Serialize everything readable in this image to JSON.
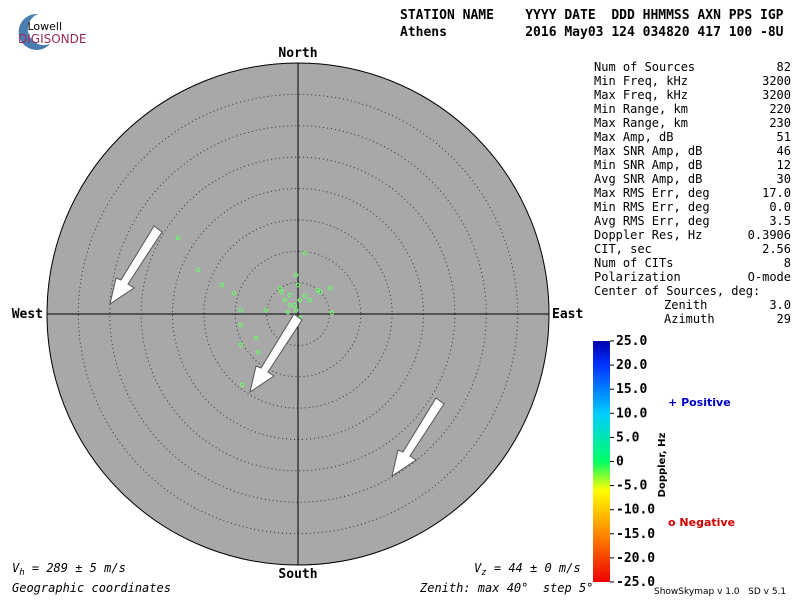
{
  "logo": {
    "top": "Lowell",
    "bottom": "DIGISONDE"
  },
  "header": {
    "line1": "STATION NAME    YYYY DATE  DDD HHMMSS AXN PPS IGP",
    "line2": "Athens          2016 May03 124 034820 417 100 -8U"
  },
  "stats": {
    "rows": [
      [
        "Num of Sources",
        "82"
      ],
      [
        "Min Freq, kHz",
        "3200"
      ],
      [
        "Max Freq, kHz",
        "3200"
      ],
      [
        "Min Range, km",
        "220"
      ],
      [
        "Max Range, km",
        "230"
      ],
      [
        "Max Amp, dB",
        "51"
      ],
      [
        "Max SNR Amp, dB",
        "46"
      ],
      [
        "Min SNR Amp, dB",
        "12"
      ],
      [
        "Avg SNR Amp, dB",
        "30"
      ],
      [
        "Max RMS Err, deg",
        "17.0"
      ],
      [
        "Min RMS Err, deg",
        "0.0"
      ],
      [
        "Avg RMS Err, deg",
        "3.5"
      ],
      [
        "Doppler Res, Hz",
        "0.3906"
      ],
      [
        "CIT, sec",
        "2.56"
      ],
      [
        "Num of CITs",
        "8"
      ],
      [
        "Polarization",
        "O-mode"
      ],
      [
        "Center of Sources, deg:",
        ""
      ]
    ],
    "center": [
      [
        "Zenith",
        "3.0"
      ],
      [
        "Azimuth",
        "29"
      ]
    ]
  },
  "compass": {
    "north": "North",
    "south": "South",
    "east": "East",
    "west": "West"
  },
  "skymap": {
    "zenith_max": 40,
    "zenith_step": 5,
    "background": "#a8a8a8",
    "points": [
      {
        "x": -19.1,
        "y": 12.1
      },
      {
        "x": -15.9,
        "y": 7.0
      },
      {
        "x": -12.1,
        "y": 4.6
      },
      {
        "x": -10.2,
        "y": 3.3
      },
      {
        "x": -9.1,
        "y": 0.6
      },
      {
        "x": -9.1,
        "y": -1.8
      },
      {
        "x": -6.7,
        "y": -3.8
      },
      {
        "x": -9.1,
        "y": -4.9
      },
      {
        "x": -6.4,
        "y": -6.1
      },
      {
        "x": -8.9,
        "y": -11.3
      },
      {
        "x": -5.1,
        "y": 0.6
      },
      {
        "x": 1.1,
        "y": 9.7
      },
      {
        "x": -0.3,
        "y": 6.2
      },
      {
        "x": 0,
        "y": 4.6
      },
      {
        "x": 3.2,
        "y": 3.8
      },
      {
        "x": 5.1,
        "y": 4.1
      },
      {
        "x": 5.4,
        "y": 0.2
      },
      {
        "x": -1.3,
        "y": 3.0
      },
      {
        "x": -2.1,
        "y": 2.2
      },
      {
        "x": 0.3,
        "y": 2.2
      },
      {
        "x": -0.5,
        "y": 1.4
      },
      {
        "x": -1.3,
        "y": 1.4
      },
      {
        "x": 1.1,
        "y": 2.9
      },
      {
        "x": 1.9,
        "y": 2.2
      },
      {
        "x": -2.6,
        "y": 3.5
      },
      {
        "x": -0.3,
        "y": 0.6
      },
      {
        "x": -1.6,
        "y": 0.3
      },
      {
        "x": 0.3,
        "y": -0.6
      },
      {
        "x": 3.5,
        "y": 3.5
      },
      {
        "x": -2.9,
        "y": 4.1
      }
    ],
    "point_color": "#66ff66"
  },
  "colorbar": {
    "label": "Doppler, Hz",
    "ylim": [
      -25,
      25
    ],
    "ticks": [
      {
        "value": 25,
        "label": "25.0"
      },
      {
        "value": 20,
        "label": "20.0"
      },
      {
        "value": 15,
        "label": "15.0"
      },
      {
        "value": 10,
        "label": "10.0"
      },
      {
        "value": 5,
        "label": "5.0"
      },
      0,
      {
        "value": -5,
        "label": "-5.0"
      },
      {
        "value": -10,
        "label": "-10.0"
      },
      {
        "value": -15,
        "label": "-15.0"
      },
      {
        "value": -20,
        "label": "-20.0"
      },
      {
        "value": -25,
        "label": "-25.0"
      }
    ]
  },
  "legend": {
    "positive_symbol": "+",
    "positive": "Positive",
    "negative_symbol": "o",
    "negative": "Negative"
  },
  "footer": {
    "vh_symbol": "V",
    "vh_sub": "h",
    "vh_text": " = 289 ± 5 m/s",
    "vz_symbol": "V",
    "vz_sub": "z",
    "vz_text": " = 44 ± 0 m/s",
    "coords": "Geographic coordinates",
    "zenith": "Zenith: max 40°  step 5°",
    "version": "ShowSkymap v 1.0   SD v 5.1"
  }
}
